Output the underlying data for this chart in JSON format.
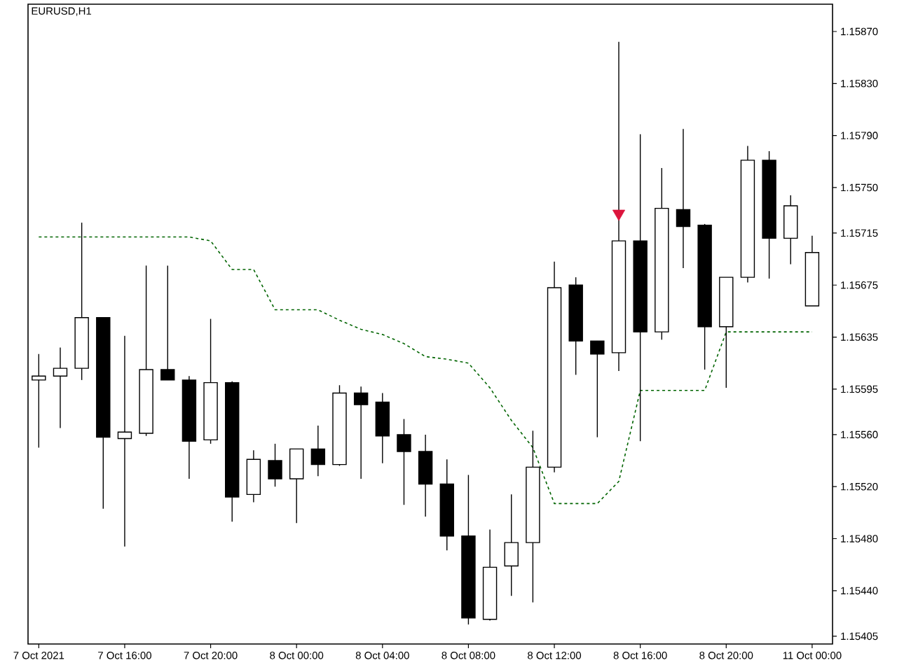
{
  "chart_data": {
    "type": "candlestick",
    "title": "EURUSD,H1",
    "categories": [
      "7 Oct 2021",
      null,
      null,
      null,
      "7 Oct 16:00",
      null,
      null,
      null,
      "7 Oct 20:00",
      null,
      null,
      null,
      "8 Oct 00:00",
      null,
      null,
      null,
      "8 Oct 04:00",
      null,
      null,
      null,
      "8 Oct 08:00",
      null,
      null,
      null,
      "8 Oct 12:00",
      null,
      null,
      null,
      "8 Oct 16:00",
      null,
      null,
      null,
      "8 Oct 20:00",
      null,
      null,
      null,
      "11 Oct 00:00"
    ],
    "ohlc": [
      [
        1.15602,
        1.15622,
        1.1555,
        1.15605
      ],
      [
        1.15605,
        1.15627,
        1.15565,
        1.15611
      ],
      [
        1.15611,
        1.15723,
        1.15602,
        1.1565
      ],
      [
        1.1565,
        1.1565,
        1.15503,
        1.15558
      ],
      [
        1.15557,
        1.15636,
        1.15474,
        1.15562
      ],
      [
        1.15561,
        1.1569,
        1.15559,
        1.1561
      ],
      [
        1.1561,
        1.1569,
        1.15602,
        1.15602
      ],
      [
        1.15602,
        1.15605,
        1.15526,
        1.15555
      ],
      [
        1.15556,
        1.15649,
        1.15553,
        1.156
      ],
      [
        1.156,
        1.15601,
        1.15493,
        1.15512
      ],
      [
        1.15514,
        1.15548,
        1.15508,
        1.15541
      ],
      [
        1.1554,
        1.15553,
        1.1552,
        1.15526
      ],
      [
        1.15526,
        1.15549,
        1.15492,
        1.15549
      ],
      [
        1.15549,
        1.15567,
        1.15528,
        1.15537
      ],
      [
        1.15537,
        1.15598,
        1.15536,
        1.15592
      ],
      [
        1.15592,
        1.15597,
        1.15526,
        1.15583
      ],
      [
        1.15585,
        1.15592,
        1.15538,
        1.15559
      ],
      [
        1.1556,
        1.15572,
        1.15506,
        1.15547
      ],
      [
        1.15547,
        1.1556,
        1.15497,
        1.15522
      ],
      [
        1.15522,
        1.15541,
        1.15471,
        1.15482
      ],
      [
        1.15482,
        1.15529,
        1.15414,
        1.15419
      ],
      [
        1.15418,
        1.15487,
        1.15417,
        1.15458
      ],
      [
        1.15459,
        1.15514,
        1.15436,
        1.15477
      ],
      [
        1.15477,
        1.15563,
        1.15431,
        1.15535
      ],
      [
        1.15535,
        1.15693,
        1.15531,
        1.15673
      ],
      [
        1.15675,
        1.15681,
        1.15606,
        1.15632
      ],
      [
        1.15632,
        1.15632,
        1.15558,
        1.15622
      ],
      [
        1.15623,
        1.15862,
        1.15609,
        1.15709
      ],
      [
        1.15709,
        1.15791,
        1.15555,
        1.15639
      ],
      [
        1.15639,
        1.15765,
        1.15633,
        1.15734
      ],
      [
        1.15733,
        1.15795,
        1.15688,
        1.1572
      ],
      [
        1.15721,
        1.15722,
        1.1561,
        1.15643
      ],
      [
        1.15643,
        1.15681,
        1.15596,
        1.15681
      ],
      [
        1.15681,
        1.15782,
        1.15677,
        1.15771
      ],
      [
        1.15771,
        1.15778,
        1.1568,
        1.15711
      ],
      [
        1.15711,
        1.15744,
        1.15691,
        1.15736
      ],
      [
        1.15659,
        1.15713,
        1.15659,
        1.157
      ]
    ],
    "series": [
      {
        "type": "line",
        "color": "#006400",
        "line_style": "dashed",
        "values": [
          1.15712,
          1.15712,
          1.15712,
          1.15712,
          1.15712,
          1.15712,
          1.15712,
          1.15712,
          1.15709,
          1.15687,
          1.15687,
          1.15656,
          1.15656,
          1.15656,
          1.15648,
          1.15641,
          1.15637,
          1.1563,
          1.1562,
          1.15618,
          1.15615,
          1.15596,
          1.15571,
          1.1555,
          1.15507,
          1.15507,
          1.15507,
          1.15524,
          1.15594,
          1.15594,
          1.15594,
          1.15594,
          1.15639,
          1.15639,
          1.15639,
          1.15639,
          1.15639
        ]
      },
      {
        "type": "scatter",
        "color": "#dc143c",
        "marker": "triangle",
        "values": [
          null,
          null,
          null,
          null,
          null,
          null,
          null,
          null,
          null,
          null,
          null,
          null,
          null,
          null,
          null,
          null,
          null,
          null,
          null,
          null,
          null,
          null,
          null,
          null,
          null,
          null,
          null,
          1.1573,
          null,
          null,
          null,
          null,
          null,
          null,
          null,
          null,
          null
        ]
      }
    ],
    "ylim": [
      1.15399,
      1.15891
    ],
    "yticks": [
      {
        "value": 1.1587,
        "label": "1.15870"
      },
      {
        "value": 1.1583,
        "label": "1.15830"
      },
      {
        "value": 1.1579,
        "label": "1.15790"
      },
      {
        "value": 1.1575,
        "label": "1.15750"
      },
      {
        "value": 1.15715,
        "label": "1.15715"
      },
      {
        "value": 1.15675,
        "label": "1.15675"
      },
      {
        "value": 1.15635,
        "label": "1.15635"
      },
      {
        "value": 1.15595,
        "label": "1.15595"
      },
      {
        "value": 1.1556,
        "label": "1.15560"
      },
      {
        "value": 1.1552,
        "label": "1.15520"
      },
      {
        "value": 1.1548,
        "label": "1.15480"
      },
      {
        "value": 1.1544,
        "label": "1.15440"
      },
      {
        "value": 1.15405,
        "label": "1.15405"
      }
    ]
  }
}
